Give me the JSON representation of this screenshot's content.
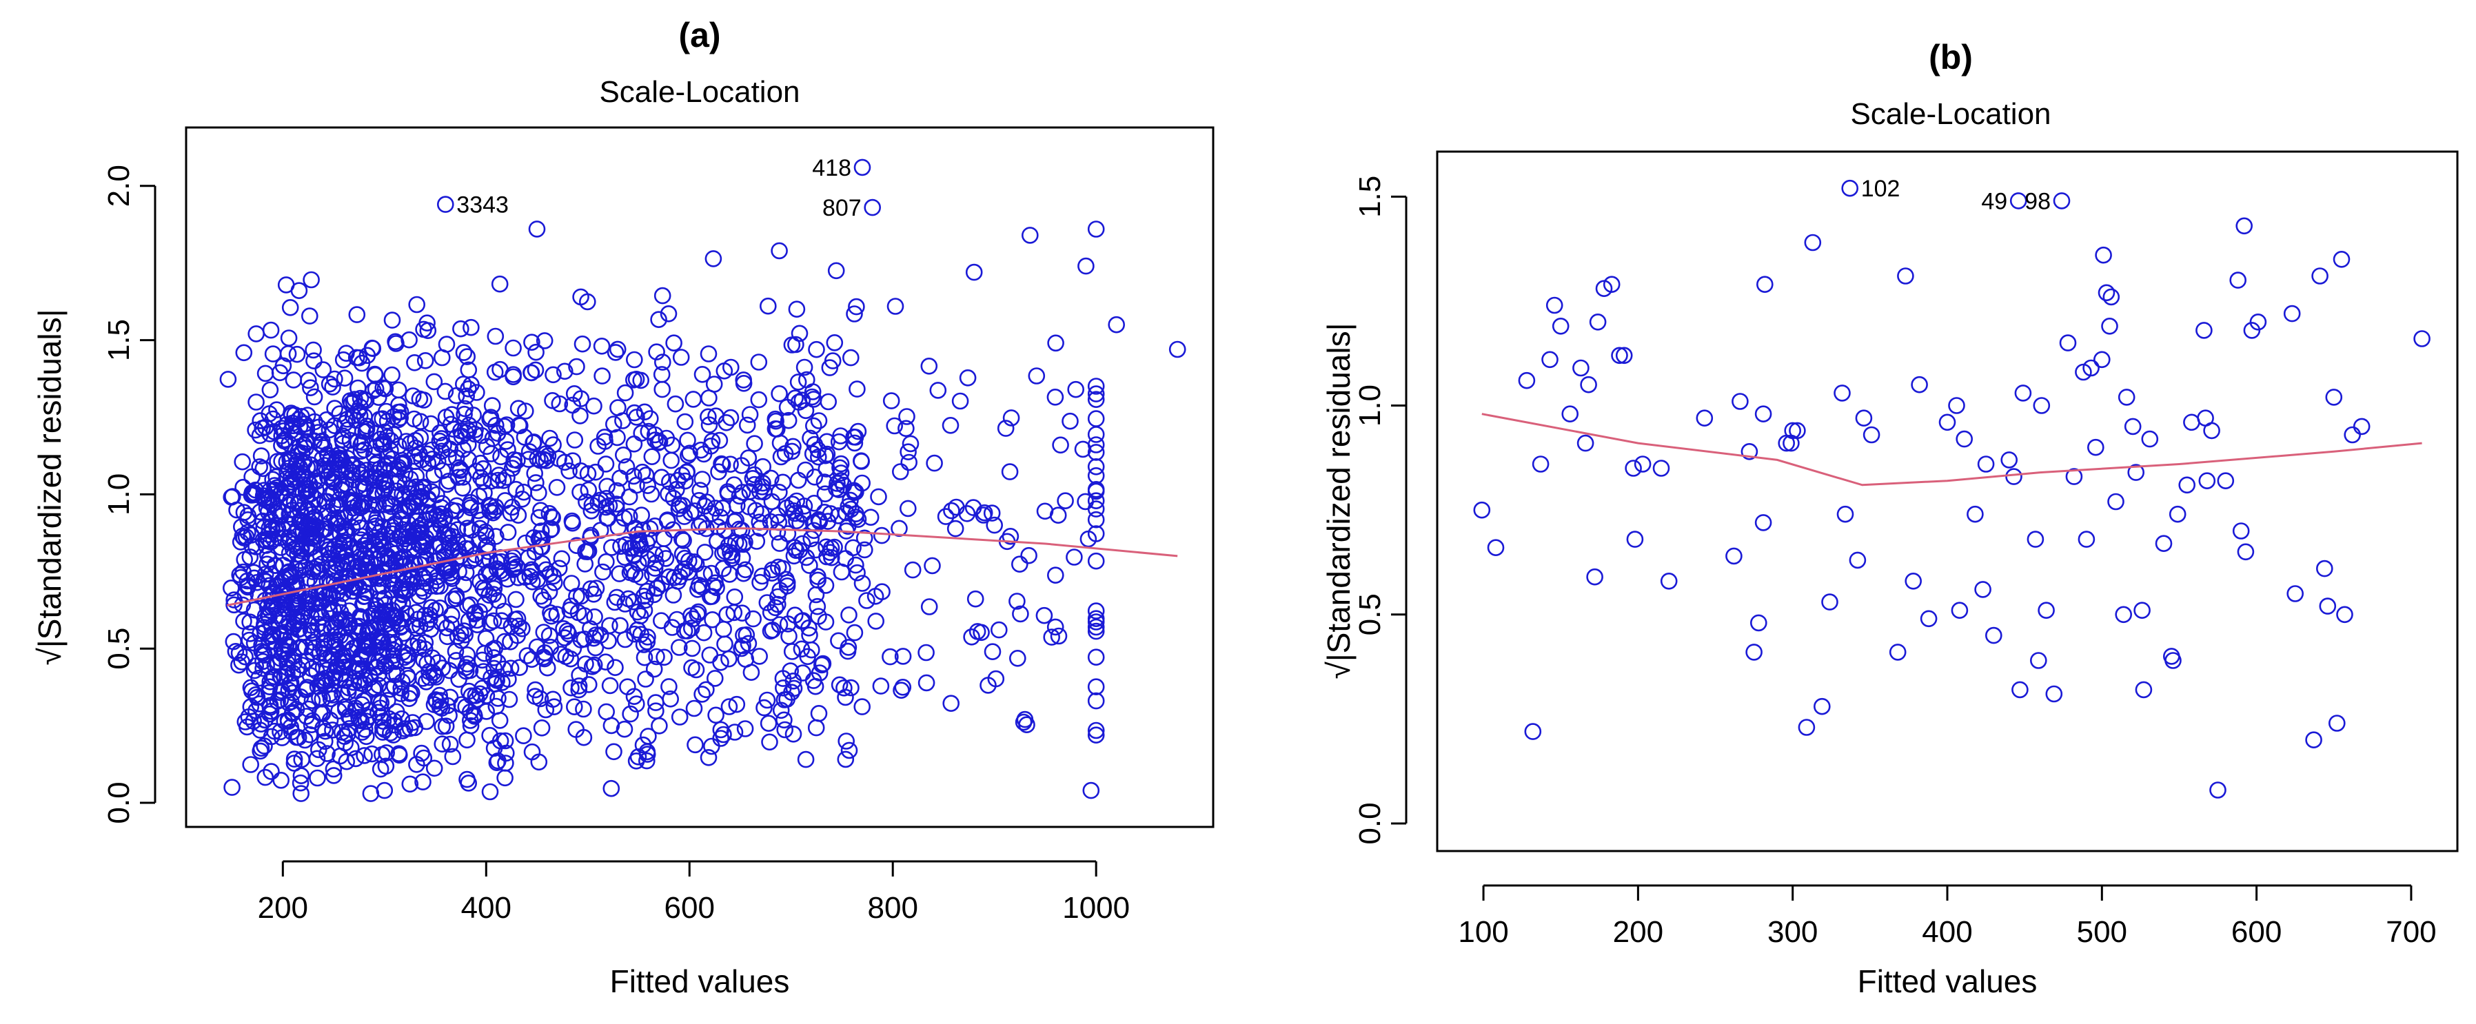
{
  "colors": {
    "points": "#1a1ad6",
    "smooth": "#d9607a",
    "axis": "#000000"
  },
  "chart_data": [
    {
      "panel_label": "(a)",
      "title": "Scale-Location",
      "type": "scatter",
      "xlabel": "Fitted values",
      "ylabel_prefix": "√",
      "ylabel": "|Standardized residuals|",
      "xlim": [
        120,
        1100
      ],
      "ylim": [
        0,
        2.1
      ],
      "xticks": [
        200,
        400,
        600,
        800,
        1000
      ],
      "xtick_labels": [
        "200",
        "400",
        "600",
        "800",
        "1000"
      ],
      "yticks": [
        0.0,
        0.5,
        1.0,
        1.5,
        2.0
      ],
      "ytick_labels": [
        "0.0",
        "0.5",
        "1.0",
        "1.5",
        "2.0"
      ],
      "points_description_count": 2400,
      "points_generated": true,
      "generator": {
        "seed": 11,
        "n": 2400,
        "x_min": 145,
        "x_mode": 260,
        "x_max": 1080
      },
      "points_fixed": [
        [
          1080,
          1.47
        ],
        [
          1020,
          1.55
        ],
        [
          995,
          0.04
        ],
        [
          990,
          1.74
        ],
        [
          980,
          1.34
        ],
        [
          965,
          1.16
        ],
        [
          960,
          0.57
        ],
        [
          935,
          1.84
        ],
        [
          930,
          0.27
        ],
        [
          900,
          0.9
        ],
        [
          880,
          1.72
        ],
        [
          360,
          1.94
        ],
        [
          770,
          2.06
        ],
        [
          780,
          1.93
        ],
        [
          450,
          1.86
        ],
        [
          300,
          0.04
        ],
        [
          150,
          0.05
        ]
      ],
      "smooth_x": [
        145,
        250,
        400,
        550,
        650,
        750,
        850,
        950,
        1080
      ],
      "smooth_y": [
        0.64,
        0.71,
        0.81,
        0.88,
        0.89,
        0.88,
        0.86,
        0.84,
        0.8
      ],
      "annotations": [
        {
          "text": "3343",
          "x": 360,
          "y": 1.94,
          "side": "right"
        },
        {
          "text": "418",
          "x": 770,
          "y": 2.06,
          "side": "left"
        },
        {
          "text": "807",
          "x": 780,
          "y": 1.93,
          "side": "left"
        }
      ]
    },
    {
      "panel_label": "(b)",
      "title": "Scale-Location",
      "type": "scatter",
      "xlabel": "Fitted values",
      "ylabel_prefix": "√",
      "ylabel": "|Standardized residuals|",
      "xlim": [
        80,
        720
      ],
      "ylim": [
        0,
        1.55
      ],
      "xticks": [
        100,
        200,
        300,
        400,
        500,
        600,
        700
      ],
      "xtick_labels": [
        "100",
        "200",
        "300",
        "400",
        "500",
        "600",
        "700"
      ],
      "yticks": [
        0.0,
        0.5,
        1.0,
        1.5
      ],
      "ytick_labels": [
        "0.0",
        "0.5",
        "1.0",
        "1.5"
      ],
      "points_generated": false,
      "points_fixed": [
        [
          99,
          0.75
        ],
        [
          108,
          0.66
        ],
        [
          128,
          1.06
        ],
        [
          132,
          0.22
        ],
        [
          137,
          0.86
        ],
        [
          143,
          1.11
        ],
        [
          146,
          1.24
        ],
        [
          150,
          1.19
        ],
        [
          156,
          0.98
        ],
        [
          163,
          1.09
        ],
        [
          166,
          0.91
        ],
        [
          168,
          1.05
        ],
        [
          172,
          0.59
        ],
        [
          174,
          1.2
        ],
        [
          178,
          1.28
        ],
        [
          183,
          1.29
        ],
        [
          188,
          1.12
        ],
        [
          191,
          1.12
        ],
        [
          197,
          0.85
        ],
        [
          198,
          0.68
        ],
        [
          203,
          0.86
        ],
        [
          215,
          0.85
        ],
        [
          220,
          0.58
        ],
        [
          243,
          0.97
        ],
        [
          262,
          0.64
        ],
        [
          266,
          1.01
        ],
        [
          272,
          0.89
        ],
        [
          275,
          0.41
        ],
        [
          278,
          0.48
        ],
        [
          281,
          0.98
        ],
        [
          282,
          1.29
        ],
        [
          281,
          0.72
        ],
        [
          296,
          0.91
        ],
        [
          299,
          0.91
        ],
        [
          303,
          0.94
        ],
        [
          309,
          0.23
        ],
        [
          313,
          1.39
        ],
        [
          319,
          0.28
        ],
        [
          324,
          0.53
        ],
        [
          332,
          1.03
        ],
        [
          334,
          0.74
        ],
        [
          337,
          1.52
        ],
        [
          342,
          0.63
        ],
        [
          346,
          0.97
        ],
        [
          351,
          0.93
        ],
        [
          368,
          0.41
        ],
        [
          373,
          1.31
        ],
        [
          378,
          0.58
        ],
        [
          382,
          1.05
        ],
        [
          388,
          0.49
        ],
        [
          400,
          0.96
        ],
        [
          406,
          1.0
        ],
        [
          408,
          0.51
        ],
        [
          411,
          0.92
        ],
        [
          418,
          0.74
        ],
        [
          423,
          0.56
        ],
        [
          425,
          0.86
        ],
        [
          430,
          0.45
        ],
        [
          440,
          0.87
        ],
        [
          443,
          0.83
        ],
        [
          446,
          1.49
        ],
        [
          447,
          0.32
        ],
        [
          449,
          1.03
        ],
        [
          457,
          0.68
        ],
        [
          459,
          0.39
        ],
        [
          461,
          1.0
        ],
        [
          464,
          0.51
        ],
        [
          469,
          0.31
        ],
        [
          474,
          1.49
        ],
        [
          478,
          1.15
        ],
        [
          482,
          0.83
        ],
        [
          488,
          1.08
        ],
        [
          490,
          0.68
        ],
        [
          493,
          1.09
        ],
        [
          496,
          0.9
        ],
        [
          500,
          1.11
        ],
        [
          501,
          1.36
        ],
        [
          503,
          1.27
        ],
        [
          505,
          1.19
        ],
        [
          506,
          1.26
        ],
        [
          509,
          0.77
        ],
        [
          514,
          0.5
        ],
        [
          516,
          1.02
        ],
        [
          520,
          0.95
        ],
        [
          522,
          0.84
        ],
        [
          526,
          0.51
        ],
        [
          527,
          0.32
        ],
        [
          531,
          0.92
        ],
        [
          540,
          0.67
        ],
        [
          545,
          0.4
        ],
        [
          546,
          0.39
        ],
        [
          549,
          0.74
        ],
        [
          555,
          0.81
        ],
        [
          558,
          0.96
        ],
        [
          566,
          1.18
        ],
        [
          567,
          0.97
        ],
        [
          568,
          0.82
        ],
        [
          571,
          0.94
        ],
        [
          575,
          0.08
        ],
        [
          580,
          0.82
        ],
        [
          588,
          1.3
        ],
        [
          590,
          0.7
        ],
        [
          592,
          1.43
        ],
        [
          593,
          0.65
        ],
        [
          597,
          1.18
        ],
        [
          601,
          1.2
        ],
        [
          623,
          1.22
        ],
        [
          625,
          0.55
        ],
        [
          637,
          0.2
        ],
        [
          641,
          1.31
        ],
        [
          644,
          0.61
        ],
        [
          646,
          0.52
        ],
        [
          650,
          1.02
        ],
        [
          652,
          0.24
        ],
        [
          655,
          1.35
        ],
        [
          657,
          0.5
        ],
        [
          662,
          0.93
        ],
        [
          668,
          0.95
        ],
        [
          707,
          1.16
        ],
        [
          300,
          0.94
        ]
      ],
      "smooth_x": [
        99,
        200,
        290,
        345,
        400,
        460,
        550,
        650,
        707
      ],
      "smooth_y": [
        0.98,
        0.91,
        0.87,
        0.81,
        0.82,
        0.84,
        0.86,
        0.89,
        0.91
      ],
      "annotations": [
        {
          "text": "102",
          "x": 337,
          "y": 1.52,
          "side": "right"
        },
        {
          "text": "49",
          "x": 446,
          "y": 1.49,
          "side": "left"
        },
        {
          "text": "98",
          "x": 474,
          "y": 1.49,
          "side": "left"
        }
      ]
    }
  ]
}
